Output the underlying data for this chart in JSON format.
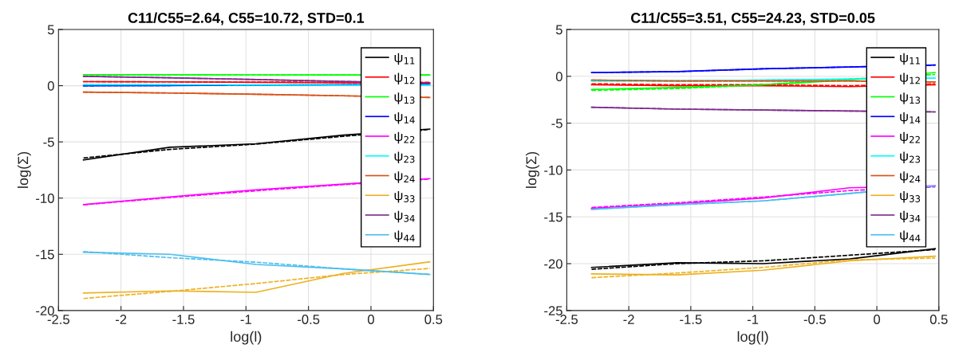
{
  "chart_data": [
    {
      "type": "line",
      "title": "C11/C55=2.64, C55=10.72, STD=0.1",
      "xlabel": "log(l)",
      "ylabel": "log(Σ)",
      "x": [
        -2.3,
        -1.61,
        -0.92,
        -0.22,
        0.47
      ],
      "xlim": [
        -2.5,
        0.5
      ],
      "xticks": [
        -2.5,
        -2,
        -1.5,
        -1,
        -0.5,
        0,
        0.5
      ],
      "ylim": [
        -20,
        5
      ],
      "yticks": [
        -20,
        -15,
        -10,
        -5,
        0,
        5
      ],
      "grid": true,
      "legend": "top right",
      "series": [
        {
          "name": "ψ$_{11}$",
          "color": "#000000",
          "line_style": "solid",
          "values": [
            -6.6,
            -5.48,
            -5.17,
            -4.4,
            -3.86
          ]
        },
        {
          "name": "ψ$_{12}$",
          "color": "#ff0000",
          "line_style": "solid",
          "values": [
            0.36,
            0.34,
            0.3,
            0.27,
            0.24
          ]
        },
        {
          "name": "ψ$_{13}$",
          "color": "#00ff00",
          "line_style": "solid",
          "values": [
            0.98,
            0.97,
            0.96,
            0.95,
            0.95
          ]
        },
        {
          "name": "ψ$_{14}$",
          "color": "#0000ff",
          "line_style": "solid",
          "values": [
            0.0,
            0.02,
            0.05,
            0.08,
            0.1
          ]
        },
        {
          "name": "ψ$_{22}$",
          "color": "#ff00ff",
          "line_style": "solid",
          "values": [
            -10.57,
            -9.9,
            -9.26,
            -8.75,
            -8.27
          ]
        },
        {
          "name": "ψ$_{23}$",
          "color": "#00ffff",
          "line_style": "solid",
          "values": [
            0.08,
            0.08,
            0.07,
            0.06,
            0.05
          ]
        },
        {
          "name": "ψ$_{24}$",
          "color": "#d95319",
          "line_style": "solid",
          "values": [
            -0.57,
            -0.65,
            -0.76,
            -0.9,
            -1.05
          ]
        },
        {
          "name": "ψ$_{33}$",
          "color": "#edb120",
          "line_style": "solid",
          "values": [
            -18.45,
            -18.26,
            -18.38,
            -16.7,
            -15.67
          ]
        },
        {
          "name": "ψ$_{34}$",
          "color": "#7e2f8e",
          "line_style": "solid",
          "values": [
            0.83,
            0.7,
            0.55,
            0.38,
            0.24
          ]
        },
        {
          "name": "ψ$_{44}$",
          "color": "#4dbeee",
          "line_style": "solid",
          "values": [
            -14.81,
            -15.0,
            -15.9,
            -16.3,
            -16.79
          ]
        },
        {
          "color": "#000000",
          "line_style": "dashed",
          "values": [
            -6.43,
            -5.67,
            -5.2,
            -4.5,
            -3.9
          ]
        },
        {
          "color": "#ff0000",
          "line_style": "dashed",
          "values": [
            0.36,
            0.34,
            0.32,
            0.3,
            0.3
          ]
        },
        {
          "color": "#00ff00",
          "line_style": "dashed",
          "values": [
            0.98,
            0.97,
            0.96,
            0.95,
            0.95
          ]
        },
        {
          "color": "#0000ff",
          "line_style": "dashed",
          "values": [
            0.0,
            0.02,
            0.05,
            0.08,
            0.1
          ]
        },
        {
          "color": "#ff00ff",
          "line_style": "dashed",
          "values": [
            -10.6,
            -9.95,
            -9.35,
            -8.8,
            -8.3
          ]
        },
        {
          "color": "#00ffff",
          "line_style": "dashed",
          "values": [
            0.08,
            0.08,
            0.07,
            0.06,
            0.05
          ]
        },
        {
          "color": "#d95319",
          "line_style": "dashed",
          "values": [
            -0.57,
            -0.65,
            -0.76,
            -0.9,
            -1.05
          ]
        },
        {
          "color": "#edb120",
          "line_style": "dashed",
          "values": [
            -18.93,
            -18.3,
            -17.6,
            -16.8,
            -16.26
          ]
        },
        {
          "color": "#7e2f8e",
          "line_style": "dashed",
          "values": [
            0.83,
            0.7,
            0.55,
            0.38,
            0.2
          ]
        },
        {
          "color": "#4dbeee",
          "line_style": "dashed",
          "values": [
            -14.76,
            -15.3,
            -15.7,
            -16.3,
            -16.79
          ]
        }
      ]
    },
    {
      "type": "line",
      "title": "C11/C55=3.51, C55=24.23, STD=0.05",
      "xlabel": "log(l)",
      "ylabel": "log(Σ)",
      "x": [
        -2.3,
        -1.61,
        -0.92,
        -0.22,
        0.47
      ],
      "xlim": [
        -2.5,
        0.5
      ],
      "xticks": [
        -2.5,
        -2,
        -1.5,
        -1,
        -0.5,
        0,
        0.5
      ],
      "ylim": [
        -25,
        5
      ],
      "yticks": [
        -25,
        -20,
        -15,
        -10,
        -5,
        0,
        5
      ],
      "grid": true,
      "legend": "top right",
      "series": [
        {
          "name": "ψ$_{11}$",
          "color": "#000000",
          "line_style": "solid",
          "values": [
            -20.4,
            -19.9,
            -20.0,
            -19.5,
            -18.4
          ]
        },
        {
          "name": "ψ$_{12}$",
          "color": "#ff0000",
          "line_style": "solid",
          "values": [
            -0.9,
            -1.0,
            -1.0,
            -1.1,
            -0.9
          ]
        },
        {
          "name": "ψ$_{13}$",
          "color": "#00ff00",
          "line_style": "solid",
          "values": [
            -1.4,
            -1.2,
            -0.9,
            -0.4,
            0.4
          ]
        },
        {
          "name": "ψ$_{14}$",
          "color": "#0000ff",
          "line_style": "solid",
          "values": [
            0.4,
            0.5,
            0.8,
            1.0,
            1.2
          ]
        },
        {
          "name": "ψ$_{22}$",
          "color": "#ff00ff",
          "line_style": "solid",
          "values": [
            -14.1,
            -13.6,
            -13.0,
            -11.9,
            -11.7
          ]
        },
        {
          "name": "ψ$_{23}$",
          "color": "#00ffff",
          "line_style": "solid",
          "values": [
            -0.5,
            -0.5,
            -0.4,
            -0.3,
            -0.2
          ]
        },
        {
          "name": "ψ$_{24}$",
          "color": "#d95319",
          "line_style": "solid",
          "values": [
            -0.4,
            -0.5,
            -0.5,
            -0.5,
            -0.6
          ]
        },
        {
          "name": "ψ$_{33}$",
          "color": "#edb120",
          "line_style": "solid",
          "values": [
            -21.1,
            -21.2,
            -20.7,
            -19.7,
            -19.2
          ]
        },
        {
          "name": "ψ$_{34}$",
          "color": "#7e2f8e",
          "line_style": "solid",
          "values": [
            -3.3,
            -3.5,
            -3.6,
            -3.7,
            -3.8
          ]
        },
        {
          "name": "ψ$_{44}$",
          "color": "#4dbeee",
          "line_style": "solid",
          "values": [
            -14.2,
            -13.7,
            -13.3,
            -12.5,
            -11.7
          ]
        },
        {
          "color": "#000000",
          "line_style": "dashed",
          "values": [
            -20.6,
            -20.0,
            -19.7,
            -19.1,
            -18.5
          ]
        },
        {
          "color": "#ff0000",
          "line_style": "dashed",
          "values": [
            -0.8,
            -0.9,
            -0.9,
            -1.0,
            -0.8
          ]
        },
        {
          "color": "#00ff00",
          "line_style": "dashed",
          "values": [
            -1.5,
            -1.3,
            -0.9,
            -0.3,
            0.2
          ]
        },
        {
          "color": "#0000ff",
          "line_style": "dashed",
          "values": [
            0.4,
            0.5,
            0.8,
            1.0,
            1.2
          ]
        },
        {
          "color": "#ff00ff",
          "line_style": "dashed",
          "values": [
            -14.0,
            -13.5,
            -12.9,
            -12.2,
            -11.8
          ]
        },
        {
          "color": "#00ffff",
          "line_style": "dashed",
          "values": [
            -0.5,
            -0.5,
            -0.4,
            -0.3,
            -0.2
          ]
        },
        {
          "color": "#d95319",
          "line_style": "dashed",
          "values": [
            -0.4,
            -0.5,
            -0.5,
            -0.5,
            -0.6
          ]
        },
        {
          "color": "#edb120",
          "line_style": "dashed",
          "values": [
            -21.5,
            -21.0,
            -20.4,
            -19.6,
            -19.4
          ]
        },
        {
          "color": "#7e2f8e",
          "line_style": "dashed",
          "values": [
            -3.3,
            -3.5,
            -3.6,
            -3.7,
            -3.8
          ]
        },
        {
          "color": "#4dbeee",
          "line_style": "dashed",
          "values": [
            -14.2,
            -13.7,
            -13.3,
            -12.5,
            -11.7
          ]
        }
      ]
    }
  ]
}
